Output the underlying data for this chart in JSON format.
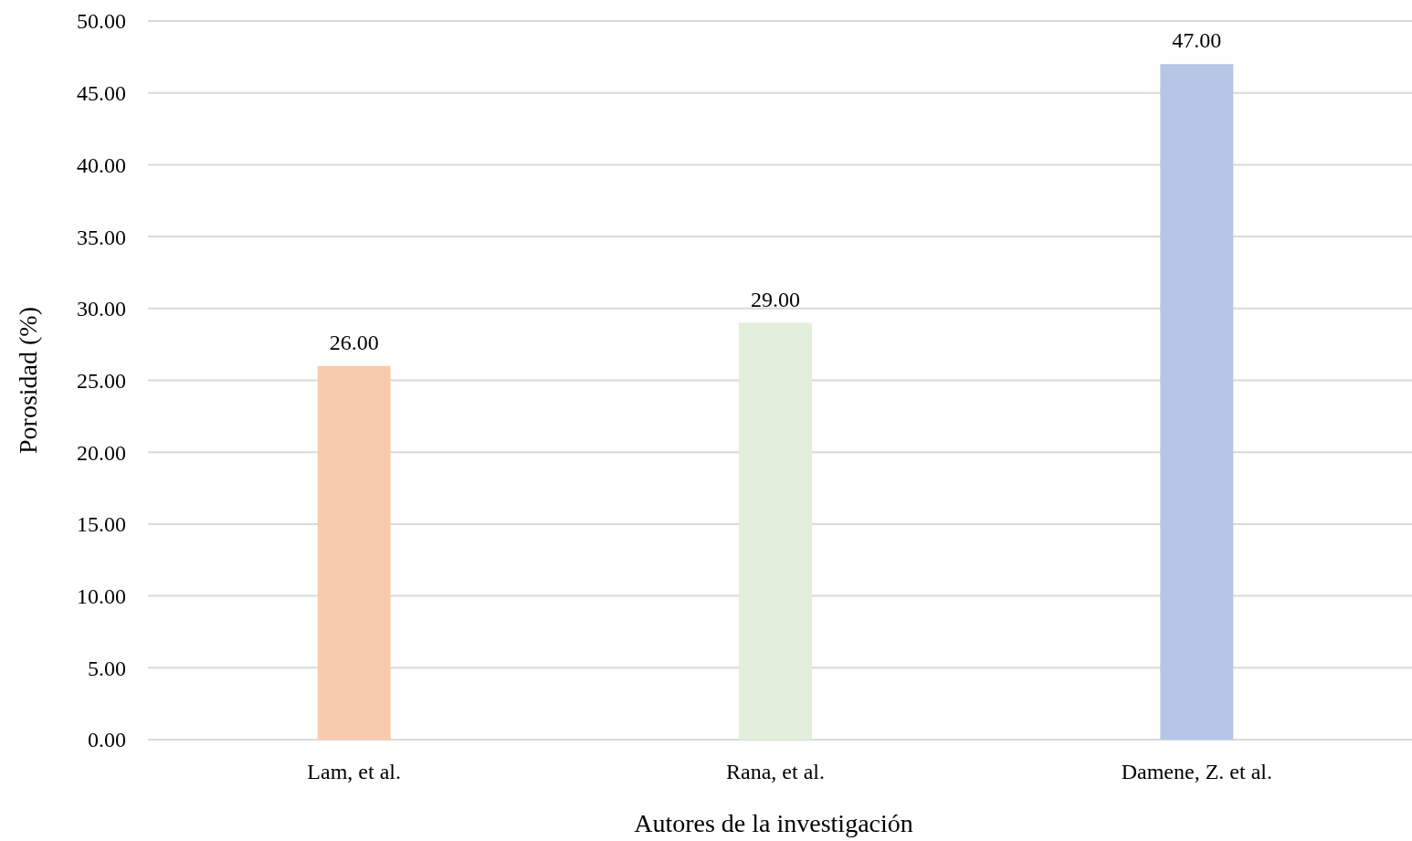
{
  "chart_data": {
    "type": "bar",
    "xlabel": "Autores de la investigación",
    "ylabel": "Porosidad (%)",
    "categories": [
      "Lam, et al.",
      "Rana, et al.",
      "Damene, Z. et al."
    ],
    "values": [
      26,
      29,
      47
    ],
    "colors": [
      "#f8cbad",
      "#e2efda",
      "#b4c7e7"
    ],
    "value_labels": [
      "26.00",
      "29.00",
      "47.00"
    ],
    "ylim": [
      0,
      50
    ],
    "yticks": [
      {
        "value": 0,
        "label": "0.00"
      },
      {
        "value": 5,
        "label": "5.00"
      },
      {
        "value": 10,
        "label": "10.00"
      },
      {
        "value": 15,
        "label": "15.00"
      },
      {
        "value": 20,
        "label": "20.00"
      },
      {
        "value": 25,
        "label": "25.00"
      },
      {
        "value": 30,
        "label": "30.00"
      },
      {
        "value": 35,
        "label": "35.00"
      },
      {
        "value": 40,
        "label": "40.00"
      },
      {
        "value": 45,
        "label": "45.00"
      },
      {
        "value": 50,
        "label": "50.00"
      }
    ],
    "grid": "y"
  }
}
